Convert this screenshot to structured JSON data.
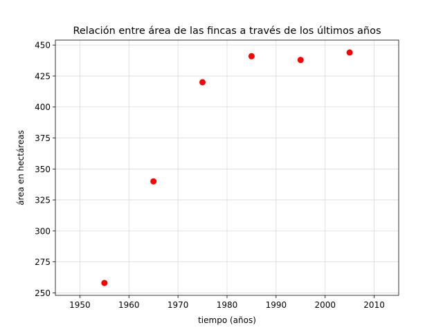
{
  "chart_data": {
    "type": "scatter",
    "title": "Relación entre área de las fincas a través de los últimos años",
    "xlabel": "tiempo (años)",
    "ylabel": "área en hectáreas",
    "xlim": [
      1945,
      2015
    ],
    "ylim": [
      248,
      454
    ],
    "xticks": [
      1950,
      1960,
      1970,
      1980,
      1990,
      2000,
      2010
    ],
    "yticks": [
      250,
      275,
      300,
      325,
      350,
      375,
      400,
      425,
      450
    ],
    "grid": true,
    "marker_color": "#ff0000",
    "points": [
      {
        "x": 1955,
        "y": 258
      },
      {
        "x": 1965,
        "y": 340
      },
      {
        "x": 1975,
        "y": 420
      },
      {
        "x": 1985,
        "y": 441
      },
      {
        "x": 1995,
        "y": 438
      },
      {
        "x": 2005,
        "y": 444
      }
    ]
  }
}
